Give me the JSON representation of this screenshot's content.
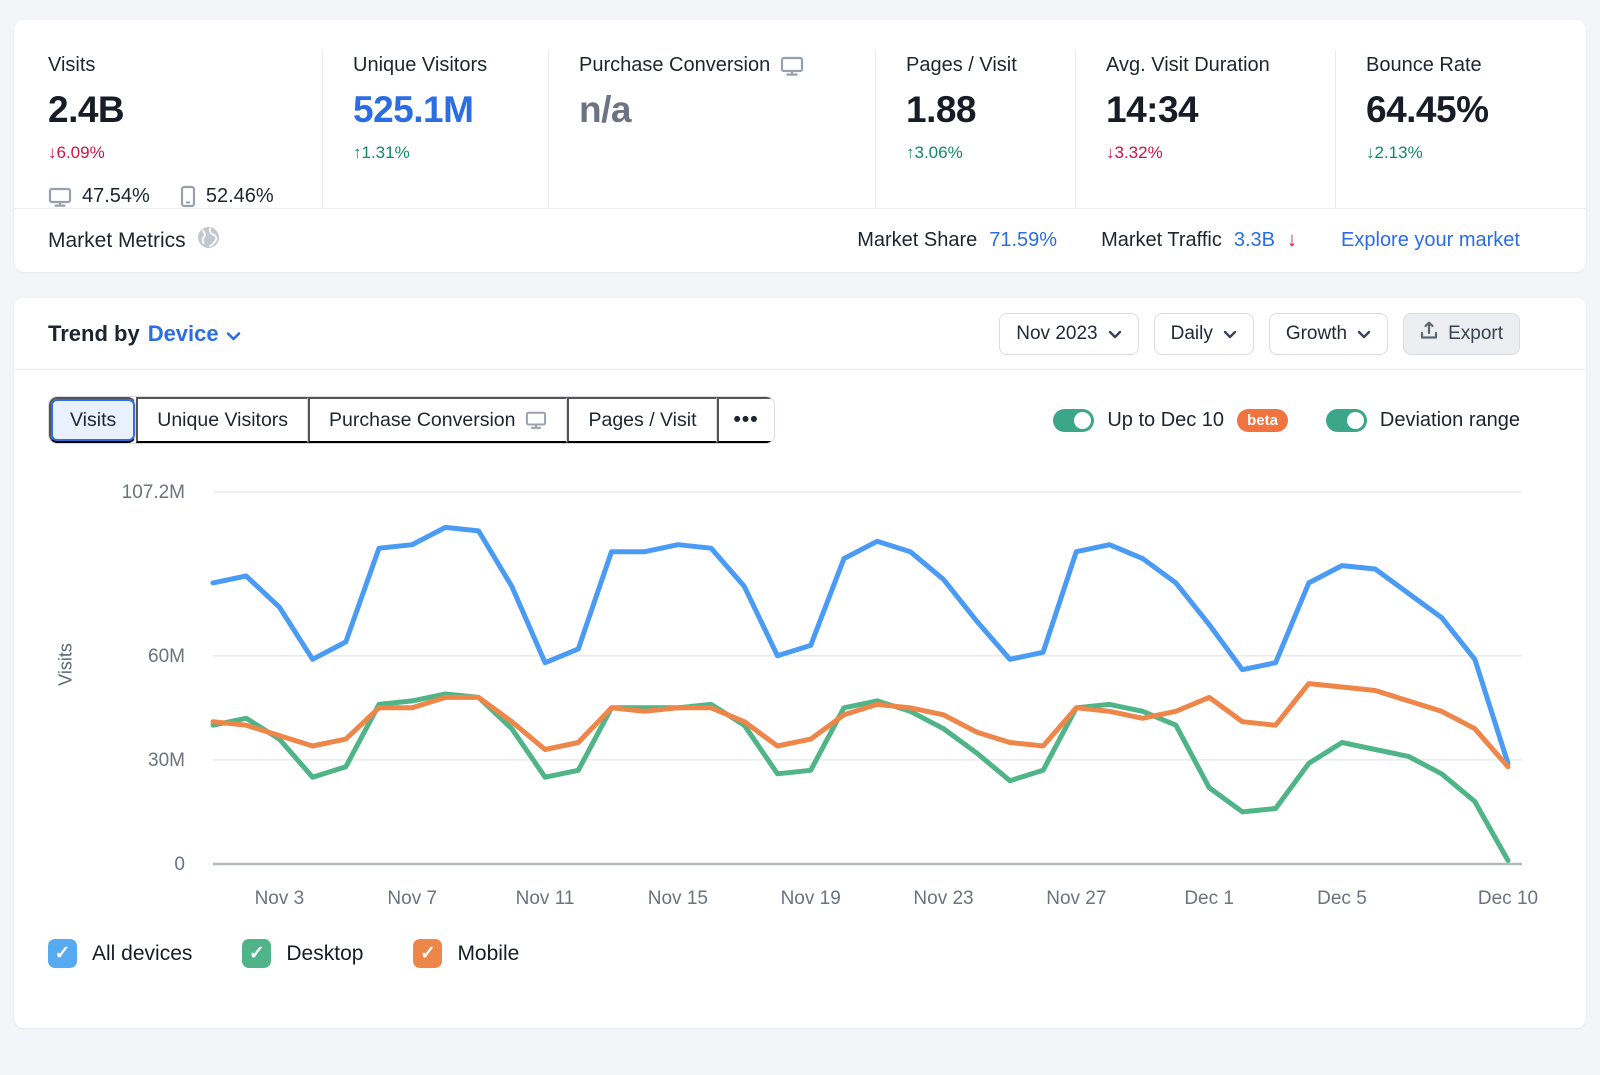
{
  "metrics": {
    "items": [
      {
        "label": "Visits",
        "value": "2.4B",
        "delta": "↓6.09%"
      },
      {
        "label": "Unique Visitors",
        "value": "525.1M",
        "delta": "↑1.31%"
      },
      {
        "label": "Purchase Conversion",
        "value": "n/a",
        "delta": ""
      },
      {
        "label": "Pages / Visit",
        "value": "1.88",
        "delta": "↑3.06%"
      },
      {
        "label": "Avg. Visit Duration",
        "value": "14:34",
        "delta": "↓3.32%"
      },
      {
        "label": "Bounce Rate",
        "value": "64.45%",
        "delta": "↓2.13%"
      }
    ],
    "device_split": {
      "desktop": "47.54%",
      "mobile": "52.46%"
    }
  },
  "market": {
    "title": "Market Metrics",
    "share_label": "Market Share",
    "share_value": "71.59%",
    "traffic_label": "Market Traffic",
    "traffic_value": "3.3B",
    "traffic_arrow": "↓",
    "explore_link": "Explore your market"
  },
  "trend": {
    "title_prefix": "Trend by",
    "title_selector": "Device",
    "period": "Nov 2023",
    "granularity": "Daily",
    "mode": "Growth",
    "export_label": "Export",
    "tabs": [
      {
        "label": "Visits"
      },
      {
        "label": "Unique Visitors"
      },
      {
        "label": "Purchase Conversion"
      },
      {
        "label": "Pages / Visit"
      }
    ],
    "more_button": "•••",
    "toggles": [
      {
        "label": "Up to Dec 10",
        "badge": "beta",
        "on": true
      },
      {
        "label": "Deviation range",
        "on": true
      }
    ]
  },
  "legend": [
    {
      "label": "All devices",
      "color": "#55aaf0"
    },
    {
      "label": "Desktop",
      "color": "#4fb488"
    },
    {
      "label": "Mobile",
      "color": "#ef8649"
    }
  ],
  "colors": {
    "link_blue": "#2b6de3",
    "delta_red": "#d01243",
    "delta_green": "#108a62",
    "toggle_green": "#3ca68b",
    "beta_orange": "#f07340",
    "grid": "#e8eaed",
    "axis": "#b2b8c0",
    "tick_text": "#6b7280"
  },
  "chart_data": {
    "type": "line",
    "title": "Trend by Device",
    "ylabel": "Visits",
    "unit": "M visits",
    "ylim": [
      0,
      107.2
    ],
    "grid": true,
    "legend_position": "bottom",
    "y_ticks": [
      {
        "value": 0,
        "label": "0"
      },
      {
        "value": 30,
        "label": "30M"
      },
      {
        "value": 60,
        "label": "60M"
      },
      {
        "value": 107.2,
        "label": "107.2M"
      }
    ],
    "x": [
      "Nov 1",
      "Nov 2",
      "Nov 3",
      "Nov 4",
      "Nov 5",
      "Nov 6",
      "Nov 7",
      "Nov 8",
      "Nov 9",
      "Nov 10",
      "Nov 11",
      "Nov 12",
      "Nov 13",
      "Nov 14",
      "Nov 15",
      "Nov 16",
      "Nov 17",
      "Nov 18",
      "Nov 19",
      "Nov 20",
      "Nov 21",
      "Nov 22",
      "Nov 23",
      "Nov 24",
      "Nov 25",
      "Nov 26",
      "Nov 27",
      "Nov 28",
      "Nov 29",
      "Nov 30",
      "Dec 1",
      "Dec 2",
      "Dec 3",
      "Dec 4",
      "Dec 5",
      "Dec 6",
      "Dec 7",
      "Dec 8",
      "Dec 9",
      "Dec 10"
    ],
    "x_tick_indices": [
      2,
      6,
      10,
      14,
      18,
      22,
      26,
      30,
      34,
      39
    ],
    "x_tick_labels": [
      "Nov 3",
      "Nov 7",
      "Nov 11",
      "Nov 15",
      "Nov 19",
      "Nov 23",
      "Nov 27",
      "Dec 1",
      "Dec 5",
      "Dec 10"
    ],
    "series": [
      {
        "name": "All devices",
        "color": "#4a9bf5",
        "values": [
          81,
          83,
          74,
          59,
          64,
          91,
          92,
          97,
          96,
          80,
          58,
          62,
          90,
          90,
          92,
          91,
          80,
          60,
          63,
          88,
          93,
          90,
          82,
          70,
          59,
          61,
          90,
          92,
          88,
          81,
          69,
          56,
          58,
          81,
          86,
          85,
          78,
          71,
          59,
          29
        ]
      },
      {
        "name": "Desktop",
        "color": "#4fb488",
        "values": [
          40,
          42,
          36,
          25,
          28,
          46,
          47,
          49,
          48,
          39,
          25,
          27,
          45,
          45,
          45,
          46,
          40,
          26,
          27,
          45,
          47,
          44,
          39,
          32,
          24,
          27,
          45,
          46,
          44,
          40,
          22,
          15,
          16,
          29,
          35,
          33,
          31,
          26,
          18,
          1
        ]
      },
      {
        "name": "Mobile",
        "color": "#ef8649",
        "values": [
          41,
          40,
          37,
          34,
          36,
          45,
          45,
          48,
          48,
          41,
          33,
          35,
          45,
          44,
          45,
          45,
          41,
          34,
          36,
          43,
          46,
          45,
          43,
          38,
          35,
          34,
          45,
          44,
          42,
          44,
          48,
          41,
          40,
          52,
          51,
          50,
          47,
          44,
          39,
          28
        ]
      }
    ]
  }
}
